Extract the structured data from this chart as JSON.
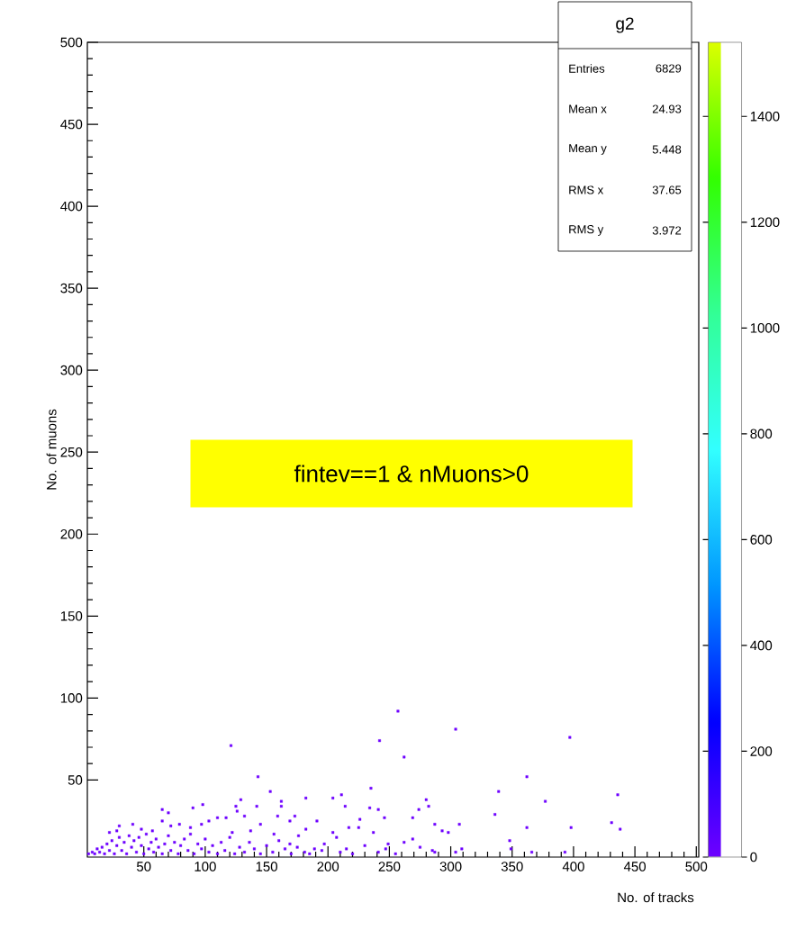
{
  "chart_data": {
    "type": "scatter",
    "xlabel": "No. of tracks",
    "ylabel": "No. of muons",
    "x": [
      5,
      8,
      10,
      12,
      14,
      16,
      18,
      20,
      22,
      24,
      26,
      28,
      30,
      32,
      34,
      36,
      38,
      40,
      42,
      44,
      46,
      48,
      50,
      52,
      54,
      56,
      58,
      60,
      62,
      65,
      67,
      70,
      72,
      75,
      78,
      80,
      83,
      86,
      88,
      91,
      94,
      97,
      100,
      103,
      106,
      110,
      113,
      116,
      120,
      124,
      128,
      132,
      136,
      140,
      145,
      150,
      155,
      160,
      165,
      170,
      175,
      185,
      195,
      220,
      230,
      255,
      262,
      257,
      304,
      397,
      121,
      242,
      262,
      143,
      362,
      235,
      153,
      339,
      436,
      129,
      162,
      377,
      182,
      204,
      211,
      98,
      90,
      65,
      70,
      125,
      142,
      162,
      214,
      234,
      241,
      280,
      282,
      274,
      126,
      132,
      336,
      246,
      226,
      269,
      173,
      159,
      110,
      117,
      65,
      103,
      169,
      191,
      307,
      431,
      41,
      30,
      72,
      79,
      88,
      97,
      145,
      217,
      225,
      362,
      398,
      438,
      287,
      293,
      298,
      237,
      204,
      182,
      137,
      122,
      22,
      28,
      48,
      57,
      176,
      156,
      207,
      269,
      197,
      249,
      169,
      348,
      349,
      309,
      247,
      215,
      189,
      275,
      285,
      241,
      210,
      181,
      287,
      304,
      366,
      393
    ],
    "values": [
      5,
      6,
      5,
      8,
      6,
      9,
      5,
      11,
      7,
      13,
      5,
      10,
      15,
      7,
      12,
      5,
      16,
      9,
      13,
      6,
      15,
      10,
      5,
      17,
      8,
      12,
      6,
      14,
      9,
      5,
      11,
      16,
      7,
      12,
      5,
      10,
      14,
      7,
      17,
      5,
      11,
      8,
      14,
      6,
      10,
      5,
      12,
      7,
      15,
      5,
      9,
      6,
      12,
      8,
      5,
      10,
      6,
      13,
      8,
      5,
      9,
      5,
      7,
      5,
      10,
      5,
      12,
      92,
      81,
      76,
      71,
      74,
      64,
      52,
      52,
      45,
      43,
      43,
      41,
      38,
      37,
      37,
      39,
      39,
      41,
      35,
      33,
      32,
      30,
      34,
      34,
      34,
      34,
      33,
      32,
      38,
      34,
      32,
      31,
      28,
      29,
      27,
      26,
      27,
      28,
      28,
      27,
      27,
      25,
      25,
      25,
      25,
      23,
      24,
      23,
      22,
      22,
      23,
      21,
      23,
      23,
      21,
      21,
      21,
      21,
      20,
      23,
      19,
      18,
      18,
      18,
      20,
      19,
      18,
      18,
      19,
      20,
      19,
      16,
      17,
      15,
      14,
      11,
      11,
      11,
      13,
      8,
      8,
      8,
      8,
      8,
      9,
      7,
      6,
      6,
      6,
      6,
      6,
      6,
      6
    ],
    "color": "#6e00ff",
    "marker": "square",
    "xlim": [
      4,
      502
    ],
    "ylim": [
      3,
      500
    ],
    "xticks": [
      50,
      100,
      150,
      200,
      250,
      300,
      350,
      400,
      450,
      500
    ],
    "yticks": [
      50,
      100,
      150,
      200,
      250,
      300,
      350,
      400,
      450,
      500
    ],
    "clim": [
      0,
      1540
    ],
    "cticks": [
      0,
      200,
      400,
      600,
      800,
      1000,
      1200,
      1400
    ],
    "annotations": [
      "fintev==1 & nMuons>0",
      "g2",
      "Entries",
      "6829",
      "Mean x",
      "24.93",
      "Mean y",
      "5.448",
      "RMS x",
      "37.65",
      "RMS y",
      "3.972"
    ]
  }
}
